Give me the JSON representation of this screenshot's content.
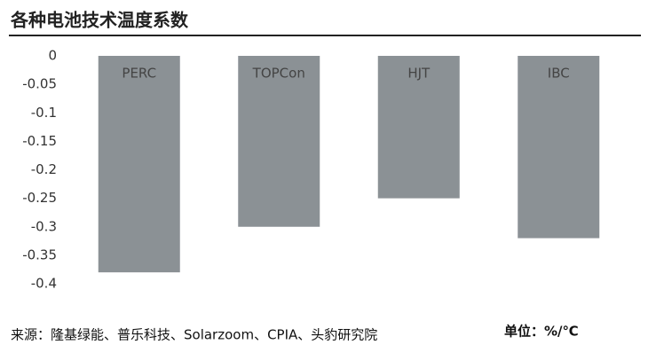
{
  "chart_data": {
    "type": "bar",
    "title": "各种电池技术温度系数",
    "categories": [
      "PERC",
      "TOPCon",
      "HJT",
      "IBC"
    ],
    "values": [
      -0.38,
      -0.3,
      -0.25,
      -0.32
    ],
    "color": "#8b9195",
    "ylim": [
      -0.4,
      0
    ],
    "yticks": [
      0,
      -0.05,
      -0.1,
      -0.15,
      -0.2,
      -0.25,
      -0.3,
      -0.35,
      -0.4
    ],
    "source": "来源：隆基绿能、普乐科技、Solarzoom、CPIA、头豹研究院",
    "unit": "单位：%/℃"
  }
}
